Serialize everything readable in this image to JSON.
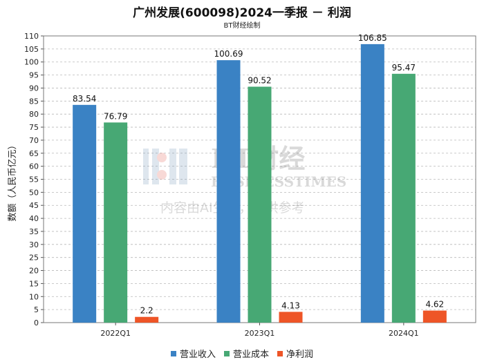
{
  "chart_data": {
    "type": "bar",
    "title": "广州发展(600098)2024一季报 － 利润",
    "subtitle": "BT财经绘制",
    "ylabel": "数额（人民币亿元）",
    "xlabel": "",
    "categories": [
      "2022Q1",
      "2023Q1",
      "2024Q1"
    ],
    "series": [
      {
        "name": "营业收入",
        "color": "#3a82c4",
        "values": [
          83.54,
          100.69,
          106.85
        ]
      },
      {
        "name": "营业成本",
        "color": "#47a874",
        "values": [
          76.79,
          90.52,
          95.47
        ]
      },
      {
        "name": "净利润",
        "color": "#ee5527",
        "values": [
          2.2,
          4.13,
          4.62
        ]
      }
    ],
    "ylim": [
      0,
      110
    ],
    "yticks": [
      0,
      5,
      10,
      15,
      20,
      25,
      30,
      35,
      40,
      45,
      50,
      55,
      60,
      65,
      70,
      75,
      80,
      85,
      90,
      95,
      100,
      105,
      110
    ],
    "grid": true,
    "legend": "bottom-center",
    "watermark": {
      "brand": "BT财经",
      "brand_en": "BUSINESSTIMES",
      "note": "内容由AI生成，仅供参考"
    }
  }
}
